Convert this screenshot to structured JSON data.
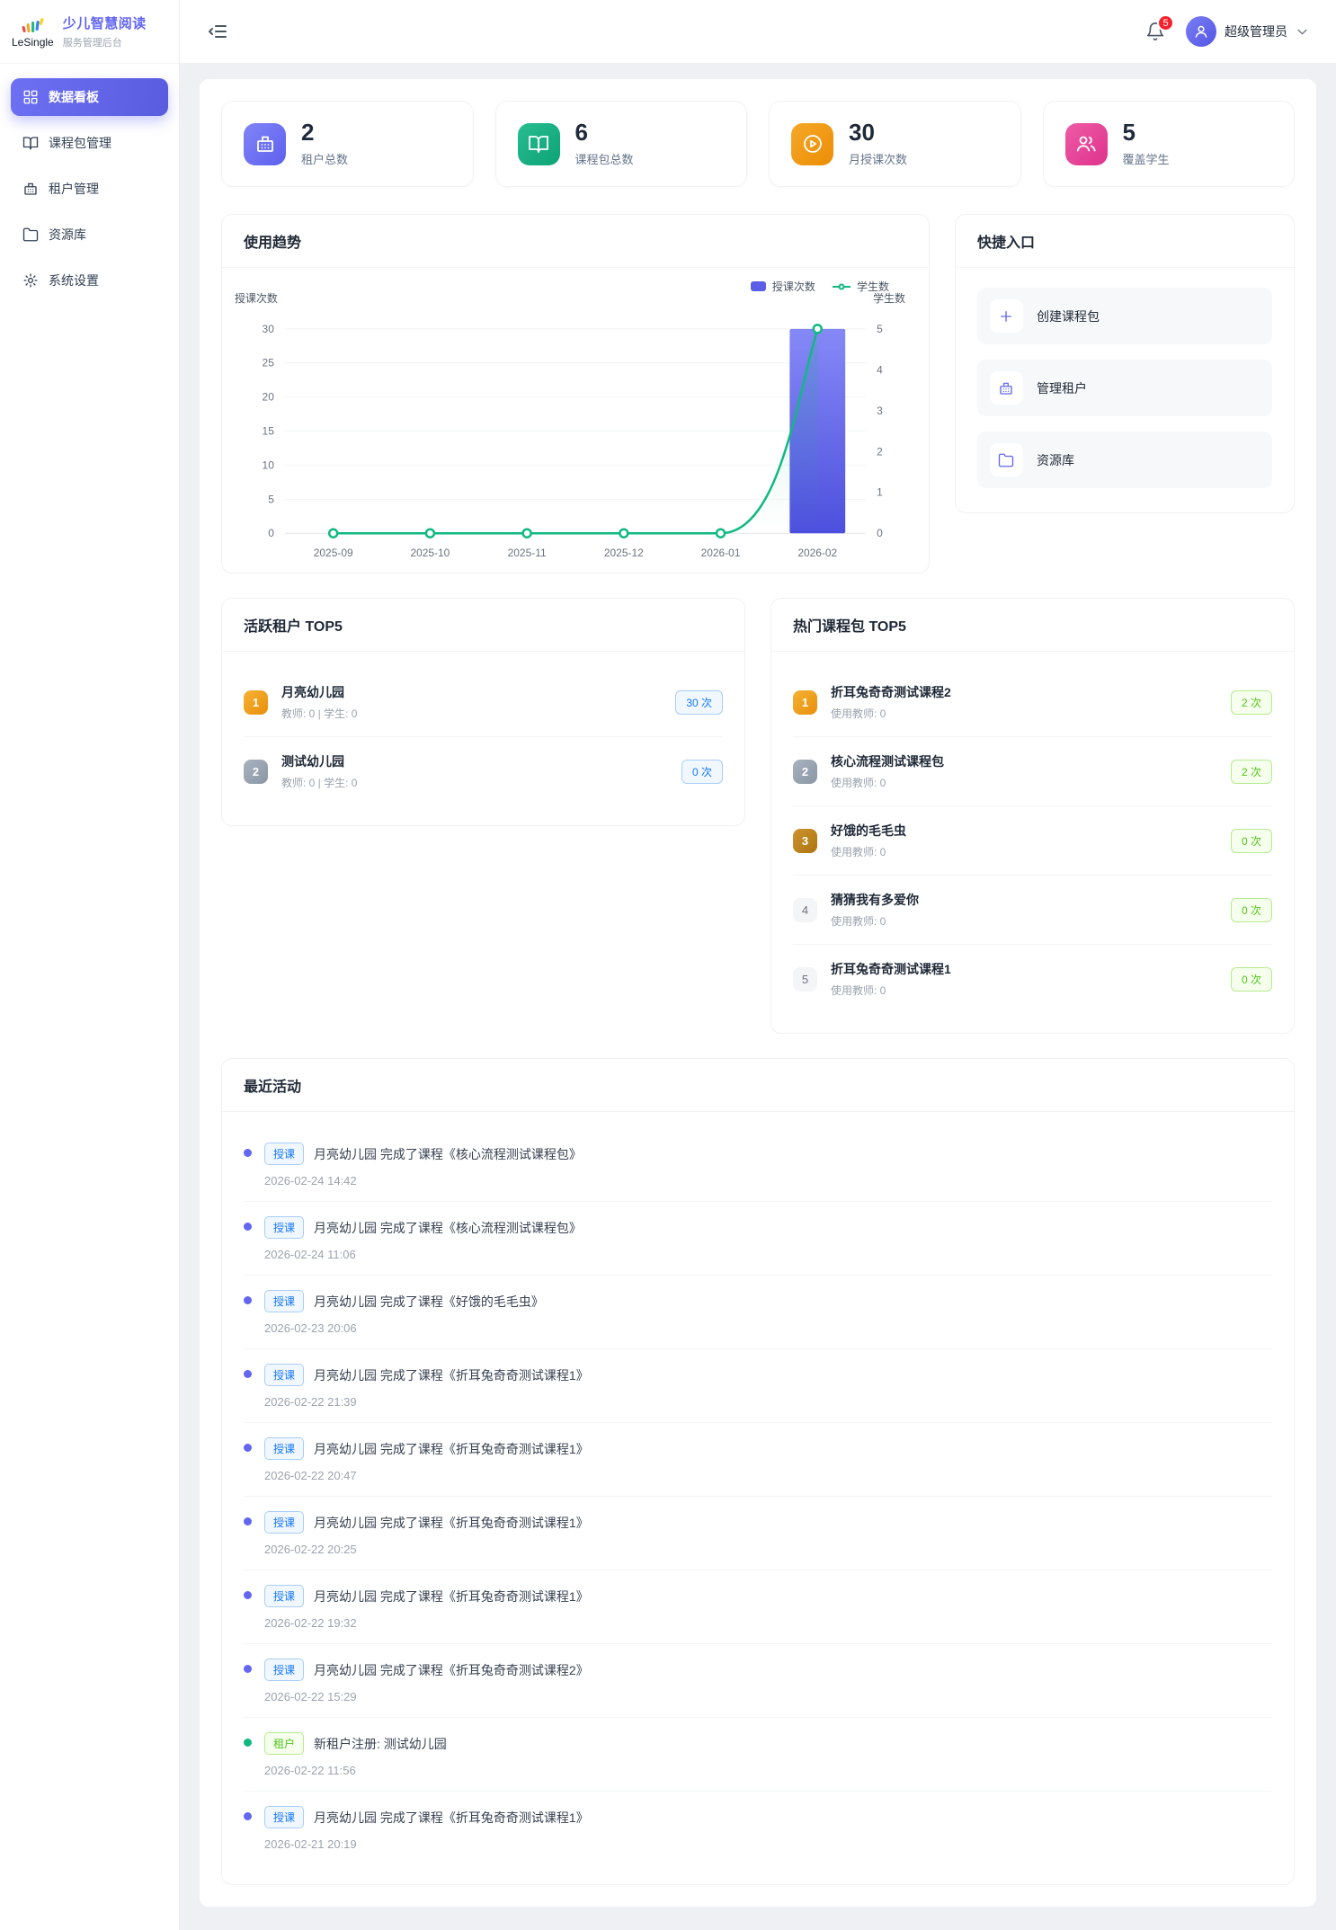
{
  "brand": {
    "logo_text": "LeSingle",
    "title": "少儿智慧阅读",
    "subtitle": "服务管理后台"
  },
  "sidebar": {
    "items": [
      {
        "id": "dashboard",
        "label": "数据看板",
        "icon": "grid",
        "state": "active"
      },
      {
        "id": "packages",
        "label": "课程包管理",
        "icon": "book",
        "state": ""
      },
      {
        "id": "tenants",
        "label": "租户管理",
        "icon": "building",
        "state": ""
      },
      {
        "id": "resources",
        "label": "资源库",
        "icon": "folder",
        "state": ""
      },
      {
        "id": "settings",
        "label": "系统设置",
        "icon": "gear",
        "state": ""
      }
    ]
  },
  "header": {
    "notification_count": "5",
    "user_name": "超级管理员"
  },
  "stats": [
    {
      "value": "2",
      "label": "租户总数",
      "icon": "building",
      "theme": "t-purple"
    },
    {
      "value": "6",
      "label": "课程包总数",
      "icon": "book",
      "theme": "t-green"
    },
    {
      "value": "30",
      "label": "月授课次数",
      "icon": "play",
      "theme": "t-orange"
    },
    {
      "value": "5",
      "label": "覆盖学生",
      "icon": "users",
      "theme": "t-pink"
    }
  ],
  "trend": {
    "title": "使用趋势"
  },
  "chart_data": {
    "type": "bar+line",
    "title": "使用趋势",
    "categories": [
      "2025-09",
      "2025-10",
      "2025-11",
      "2025-12",
      "2026-01",
      "2026-02"
    ],
    "series": [
      {
        "name": "授课次数",
        "type": "bar",
        "axis": "left",
        "values": [
          0,
          0,
          0,
          0,
          0,
          30
        ],
        "color": "#5b5ee8"
      },
      {
        "name": "学生数",
        "type": "line",
        "axis": "right",
        "values": [
          0,
          0,
          0,
          0,
          0,
          5
        ],
        "color": "#10b981"
      }
    ],
    "left_axis": {
      "label": "授课次数",
      "min": 0,
      "max": 30,
      "ticks": [
        0,
        5,
        10,
        15,
        20,
        25,
        30
      ]
    },
    "right_axis": {
      "label": "学生数",
      "min": 0,
      "max": 5,
      "ticks": [
        0,
        1,
        2,
        3,
        4,
        5
      ]
    },
    "grid": true,
    "legend_position": "top-right"
  },
  "quick": {
    "title": "快捷入口",
    "items": [
      {
        "id": "create-package",
        "label": "创建课程包",
        "icon": "plus"
      },
      {
        "id": "manage-tenants",
        "label": "管理租户",
        "icon": "building"
      },
      {
        "id": "resources",
        "label": "资源库",
        "icon": "folder"
      }
    ]
  },
  "active_tenants": {
    "title": "活跃租户 TOP5",
    "items": [
      {
        "rank": "1",
        "rank_theme": "r-gold",
        "name": "月亮幼儿园",
        "meta": "教师: 0 | 学生: 0",
        "count": "30 次",
        "badge_theme": "b-blue"
      },
      {
        "rank": "2",
        "rank_theme": "r-silver",
        "name": "测试幼儿园",
        "meta": "教师: 0 | 学生: 0",
        "count": "0 次",
        "badge_theme": "b-blue"
      }
    ]
  },
  "hot_packages": {
    "title": "热门课程包 TOP5",
    "items": [
      {
        "rank": "1",
        "rank_theme": "r-gold",
        "name": "折耳兔奇奇测试课程2",
        "meta": "使用教师: 0",
        "count": "2 次",
        "badge_theme": "b-green"
      },
      {
        "rank": "2",
        "rank_theme": "r-silver",
        "name": "核心流程测试课程包",
        "meta": "使用教师: 0",
        "count": "2 次",
        "badge_theme": "b-green"
      },
      {
        "rank": "3",
        "rank_theme": "r-bronze",
        "name": "好饿的毛毛虫",
        "meta": "使用教师: 0",
        "count": "0 次",
        "badge_theme": "b-green"
      },
      {
        "rank": "4",
        "rank_theme": "r-plain",
        "name": "猜猜我有多爱你",
        "meta": "使用教师: 0",
        "count": "0 次",
        "badge_theme": "b-green"
      },
      {
        "rank": "5",
        "rank_theme": "r-plain",
        "name": "折耳兔奇奇测试课程1",
        "meta": "使用教师: 0",
        "count": "0 次",
        "badge_theme": "b-green"
      }
    ]
  },
  "activities": {
    "title": "最近活动",
    "items": [
      {
        "theme": "th-blue",
        "badge": "授课",
        "text": "月亮幼儿园 完成了课程《核心流程测试课程包》",
        "time": "2026-02-24 14:42"
      },
      {
        "theme": "th-blue",
        "badge": "授课",
        "text": "月亮幼儿园 完成了课程《核心流程测试课程包》",
        "time": "2026-02-24 11:06"
      },
      {
        "theme": "th-blue",
        "badge": "授课",
        "text": "月亮幼儿园 完成了课程《好饿的毛毛虫》",
        "time": "2026-02-23 20:06"
      },
      {
        "theme": "th-blue",
        "badge": "授课",
        "text": "月亮幼儿园 完成了课程《折耳兔奇奇测试课程1》",
        "time": "2026-02-22 21:39"
      },
      {
        "theme": "th-blue",
        "badge": "授课",
        "text": "月亮幼儿园 完成了课程《折耳兔奇奇测试课程1》",
        "time": "2026-02-22 20:47"
      },
      {
        "theme": "th-blue",
        "badge": "授课",
        "text": "月亮幼儿园 完成了课程《折耳兔奇奇测试课程1》",
        "time": "2026-02-22 20:25"
      },
      {
        "theme": "th-blue",
        "badge": "授课",
        "text": "月亮幼儿园 完成了课程《折耳兔奇奇测试课程1》",
        "time": "2026-02-22 19:32"
      },
      {
        "theme": "th-blue",
        "badge": "授课",
        "text": "月亮幼儿园 完成了课程《折耳兔奇奇测试课程2》",
        "time": "2026-02-22 15:29"
      },
      {
        "theme": "th-green",
        "badge": "租户",
        "text": "新租户注册: 测试幼儿园",
        "time": "2026-02-22 11:56"
      },
      {
        "theme": "th-blue",
        "badge": "授课",
        "text": "月亮幼儿园 完成了课程《折耳兔奇奇测试课程1》",
        "time": "2026-02-21 20:19"
      }
    ]
  },
  "colors": {
    "primary": "#6366f1",
    "success": "#10b981",
    "warning": "#f59e0b",
    "pink": "#ec4899",
    "badge_blue": "#1677ff",
    "badge_green": "#52c41a",
    "notification_red": "#f5222d",
    "bar_gradient_top": "#8589f6",
    "bar_gradient_bottom": "#4d50dd"
  }
}
